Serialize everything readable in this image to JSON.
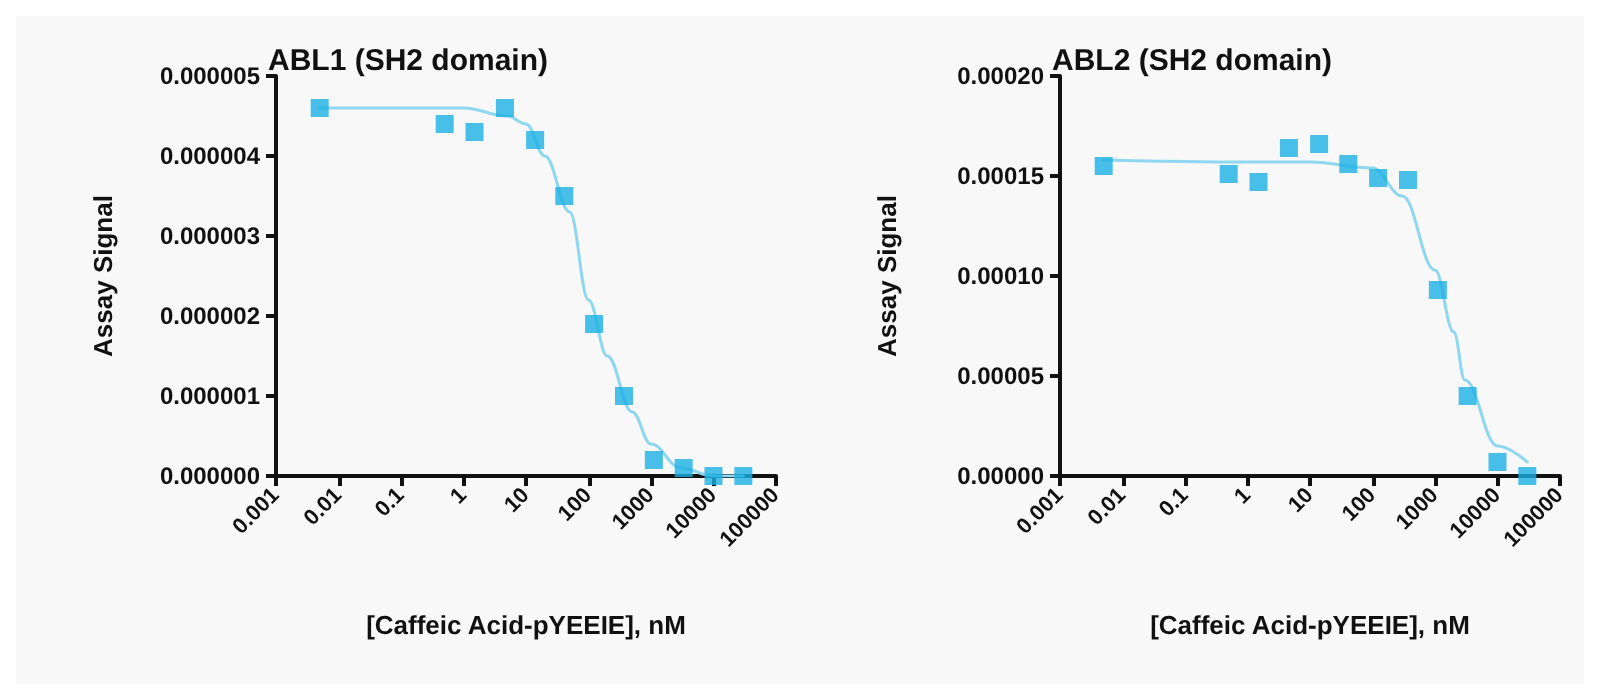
{
  "chart_data": [
    {
      "type": "scatter",
      "title": "ABL1 (SH2 domain)",
      "xlabel": "[Caffeic Acid-pYEEIE], nM",
      "ylabel": "Assay Signal",
      "log": "x",
      "grid": false,
      "marker": "square",
      "xlim": [
        0.001,
        100000
      ],
      "xticks": [
        0.001,
        0.01,
        0.1,
        1,
        10,
        100,
        1000,
        10000,
        100000
      ],
      "ylim": [
        0,
        5e-06
      ],
      "yticks": [
        {
          "value": 0,
          "label": "0.000000"
        },
        {
          "value": 1e-06,
          "label": "0.000001"
        },
        {
          "value": 2e-06,
          "label": "0.000002"
        },
        {
          "value": 3e-06,
          "label": "0.000003"
        },
        {
          "value": 4e-06,
          "label": "0.000004"
        },
        {
          "value": 5e-06,
          "label": "0.000005"
        }
      ],
      "series": [
        {
          "color": "#1ab0e4",
          "x": [
            0.005,
            0.5,
            1.5,
            4.6,
            14,
            41,
            123,
            370,
            1111,
            3333,
            10000,
            30000
          ],
          "values": [
            4.6e-06,
            4.4e-06,
            4.3e-06,
            4.6e-06,
            4.2e-06,
            3.5e-06,
            1.9e-06,
            1e-06,
            2e-07,
            1e-07,
            0,
            0
          ]
        },
        {
          "type": "line",
          "color": "#8fd6f0",
          "marker": "none",
          "line_style": "solid",
          "x": [
            0.005,
            1,
            5,
            10,
            20,
            50,
            100,
            200,
            500,
            1000,
            3000,
            10000,
            30000
          ],
          "values": [
            4.6e-06,
            4.6e-06,
            4.5e-06,
            4.4e-06,
            4e-06,
            3.3e-06,
            2.2e-06,
            1.5e-06,
            8e-07,
            4e-07,
            1e-07,
            0,
            0
          ]
        }
      ]
    },
    {
      "type": "scatter",
      "title": "ABL2 (SH2 domain)",
      "xlabel": "[Caffeic Acid-pYEEIE], nM",
      "ylabel": "Assay Signal",
      "log": "x",
      "grid": false,
      "marker": "square",
      "xlim": [
        0.001,
        100000
      ],
      "xticks": [
        0.001,
        0.01,
        0.1,
        1,
        10,
        100,
        1000,
        10000,
        100000
      ],
      "ylim": [
        0,
        0.0002
      ],
      "yticks": [
        {
          "value": 0,
          "label": "0.00000"
        },
        {
          "value": 5e-05,
          "label": "0.00005"
        },
        {
          "value": 0.0001,
          "label": "0.00010"
        },
        {
          "value": 0.00015,
          "label": "0.00015"
        },
        {
          "value": 0.0002,
          "label": "0.00020"
        }
      ],
      "series": [
        {
          "color": "#1ab0e4",
          "x": [
            0.005,
            0.5,
            1.5,
            4.6,
            14,
            41,
            123,
            370,
            1111,
            3333,
            10000,
            30000
          ],
          "values": [
            0.000155,
            0.000151,
            0.000147,
            0.000164,
            0.000166,
            0.000156,
            0.000149,
            0.000148,
            9.3e-05,
            4e-05,
            7e-06,
            0
          ]
        },
        {
          "type": "line",
          "color": "#8fd6f0",
          "marker": "none",
          "line_style": "solid",
          "x": [
            0.005,
            1,
            10,
            100,
            300,
            1000,
            2000,
            3000,
            10000,
            30000
          ],
          "values": [
            0.000158,
            0.000157,
            0.000157,
            0.000154,
            0.00014,
            0.000103,
            7.2e-05,
            4.8e-05,
            1.5e-05,
            7e-06
          ]
        }
      ]
    }
  ]
}
